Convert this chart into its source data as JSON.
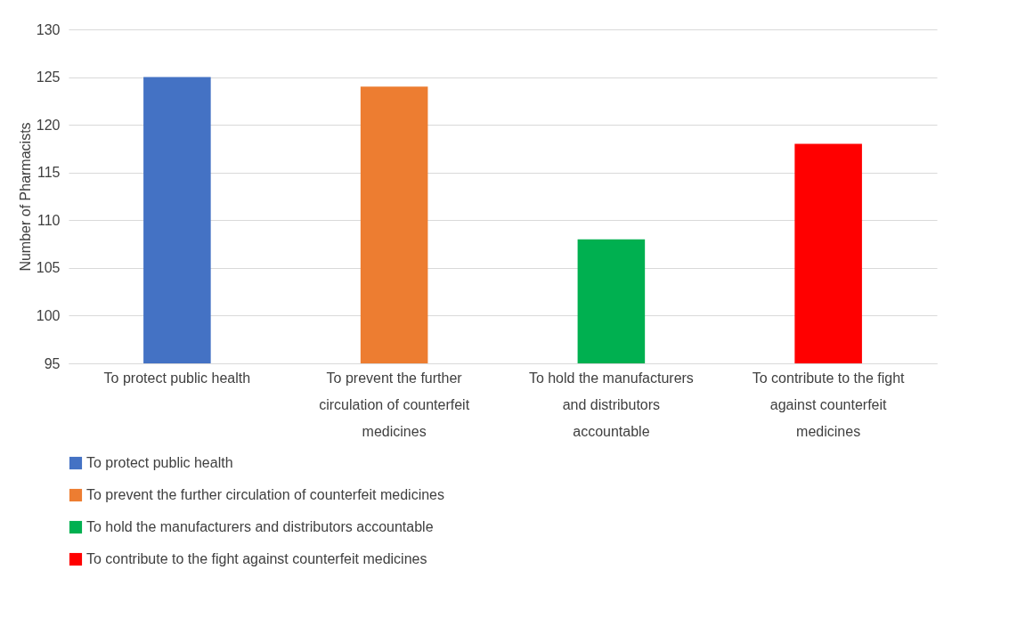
{
  "chart_data": {
    "type": "bar",
    "ylabel": "Number of Pharmacists",
    "categories": [
      "To protect public health",
      "To prevent the further circulation of counterfeit medicines",
      "To hold the manufacturers and distributors accountable",
      "To contribute to the fight against counterfeit medicines"
    ],
    "series": [
      {
        "name": "To protect public health",
        "color": "#4472c4",
        "values": [
          125,
          null,
          null,
          null
        ]
      },
      {
        "name": "To prevent the further circulation of counterfeit medicines",
        "color": "#ed7d31",
        "values": [
          null,
          124,
          null,
          null
        ]
      },
      {
        "name": "To hold the manufacturers and distributors accountable",
        "color": "#00b050",
        "values": [
          null,
          null,
          108,
          null
        ]
      },
      {
        "name": "To contribute to the fight against counterfeit medicines",
        "color": "#ff0000",
        "values": [
          null,
          null,
          null,
          118
        ]
      }
    ],
    "ylim": [
      95,
      130
    ],
    "yticks": [
      95,
      100,
      105,
      110,
      115,
      120,
      125,
      130
    ],
    "grid": "y",
    "legend": "bottom"
  }
}
